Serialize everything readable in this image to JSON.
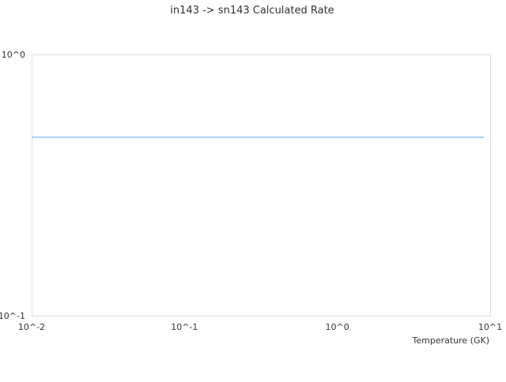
{
  "chart_data": {
    "type": "line",
    "title": "in143 -> sn143 Calculated Rate",
    "xlabel": "Temperature (GK)",
    "ylabel": "",
    "x_scale": "log",
    "y_scale": "log",
    "xlim": [
      0.01,
      10
    ],
    "ylim": [
      0.1,
      1
    ],
    "x_ticks": [
      "10^-2",
      "10^-1",
      "10^0",
      "10^1"
    ],
    "y_ticks": [
      "10^-1",
      "10^0"
    ],
    "grid": false,
    "series": [
      {
        "color": "#4da3f0",
        "x": [
          0.01,
          9.1
        ],
        "y": [
          0.482,
          0.482
        ]
      }
    ]
  }
}
